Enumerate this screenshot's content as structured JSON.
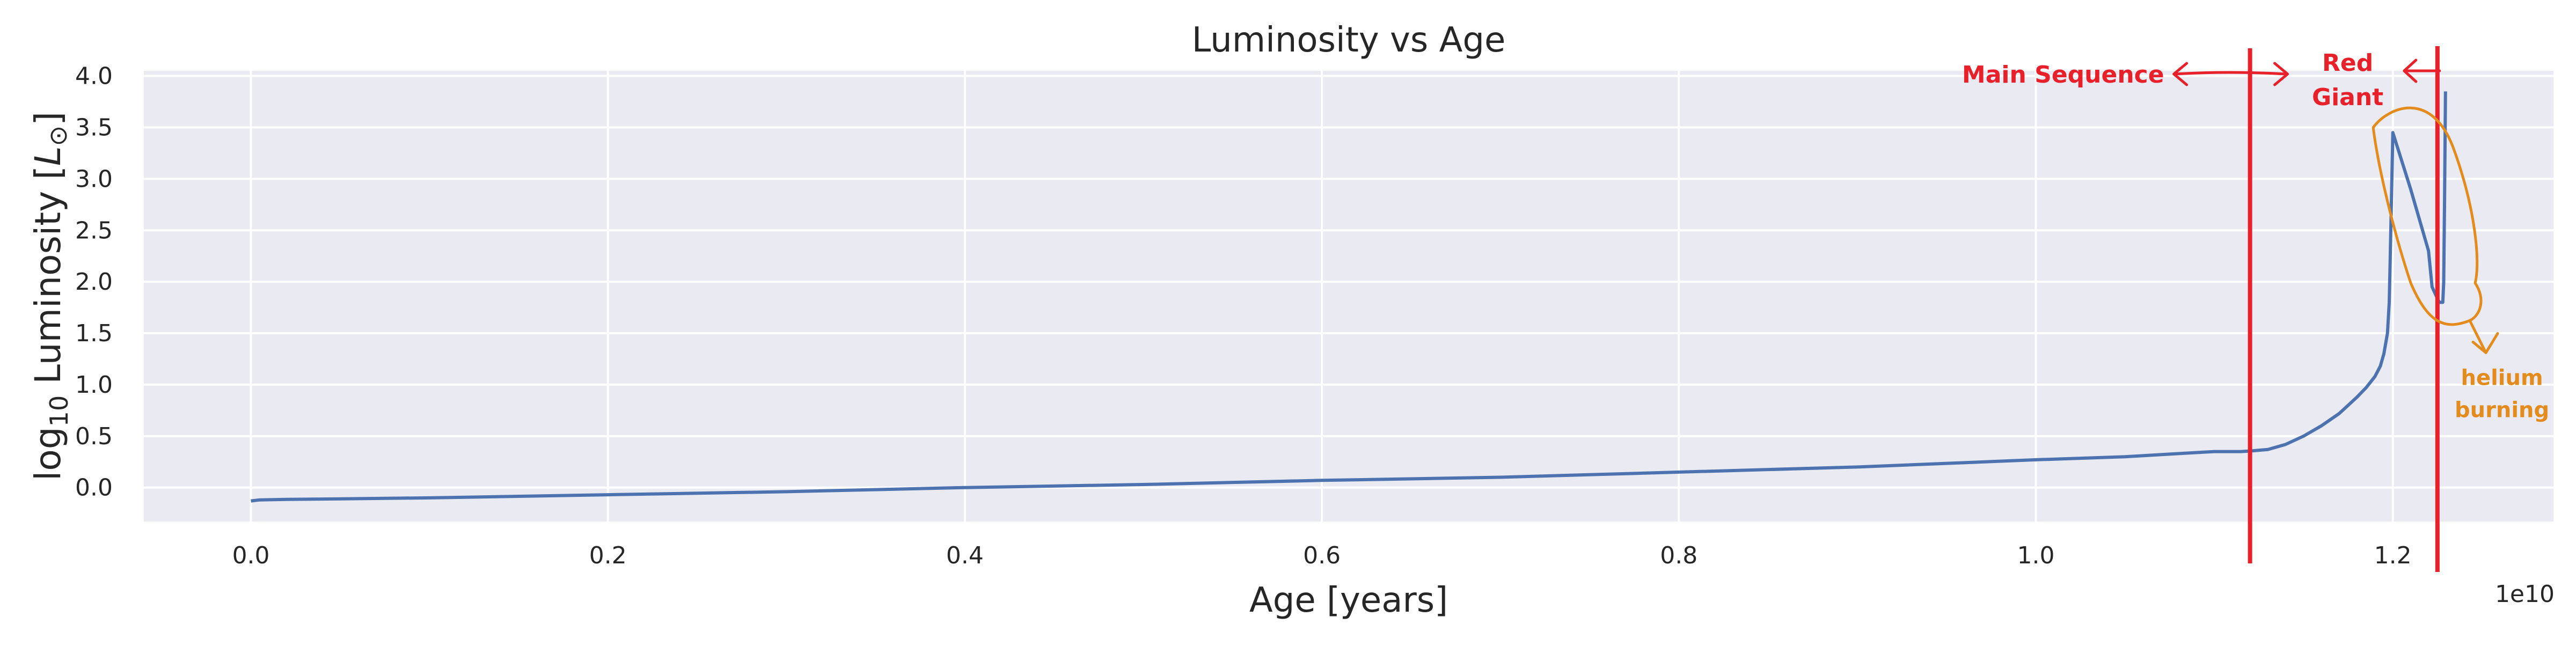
{
  "chart_data": {
    "type": "line",
    "title": "Luminosity vs Age",
    "xlabel": "Age [years]",
    "ylabel_main": "log",
    "ylabel_sub": "10",
    "ylabel_rest": " Luminosity [",
    "ylabel_L": "L",
    "ylabel_sun": "⊙",
    "ylabel_close": "]",
    "x_offset_text": "1e10",
    "xlim": [
      -0.06,
      1.29
    ],
    "ylim": [
      -0.33,
      4.05
    ],
    "x_ticks": [
      0.0,
      0.2,
      0.4,
      0.6,
      0.8,
      1.0,
      1.2
    ],
    "x_tick_labels": [
      "0.0",
      "0.2",
      "0.4",
      "0.6",
      "0.8",
      "1.0",
      "1.2"
    ],
    "y_ticks": [
      0.0,
      0.5,
      1.0,
      1.5,
      2.0,
      2.5,
      3.0,
      3.5,
      4.0
    ],
    "y_tick_labels": [
      "0.0",
      "0.5",
      "1.0",
      "1.5",
      "2.0",
      "2.5",
      "3.0",
      "3.5",
      "4.0"
    ],
    "grid": true,
    "series": [
      {
        "color": "#4c72b0",
        "x": [
          0.0,
          0.005,
          0.02,
          0.1,
          0.2,
          0.3,
          0.4,
          0.5,
          0.6,
          0.7,
          0.8,
          0.9,
          1.0,
          1.05,
          1.08,
          1.1,
          1.115,
          1.12,
          1.13,
          1.14,
          1.15,
          1.16,
          1.17,
          1.175,
          1.18,
          1.185,
          1.19,
          1.193,
          1.195,
          1.197,
          1.198,
          1.1985,
          1.2,
          1.21,
          1.22,
          1.222,
          1.226,
          1.228,
          1.2285,
          1.229,
          1.2295
        ],
        "y": [
          -0.13,
          -0.12,
          -0.115,
          -0.1,
          -0.07,
          -0.04,
          0.0,
          0.03,
          0.07,
          0.1,
          0.15,
          0.2,
          0.27,
          0.3,
          0.33,
          0.35,
          0.35,
          0.355,
          0.37,
          0.42,
          0.5,
          0.6,
          0.72,
          0.8,
          0.88,
          0.97,
          1.08,
          1.18,
          1.3,
          1.5,
          1.8,
          2.2,
          3.45,
          2.9,
          2.3,
          1.95,
          1.8,
          1.8,
          2.0,
          2.8,
          3.85
        ]
      }
    ],
    "annotations": {
      "color_red": "#e8202a",
      "color_orange": "#e38b1c",
      "main_sequence": "Main Sequence",
      "red_giant_line1": "Red",
      "red_giant_line2": "Giant",
      "helium_line1": "helium",
      "helium_line2": "burning",
      "vline_1_x": 1.12,
      "vline_2_x": 1.225
    },
    "colors": {
      "axes_bg": "#eaeaf2",
      "grid": "#ffffff",
      "text": "#262626"
    }
  }
}
